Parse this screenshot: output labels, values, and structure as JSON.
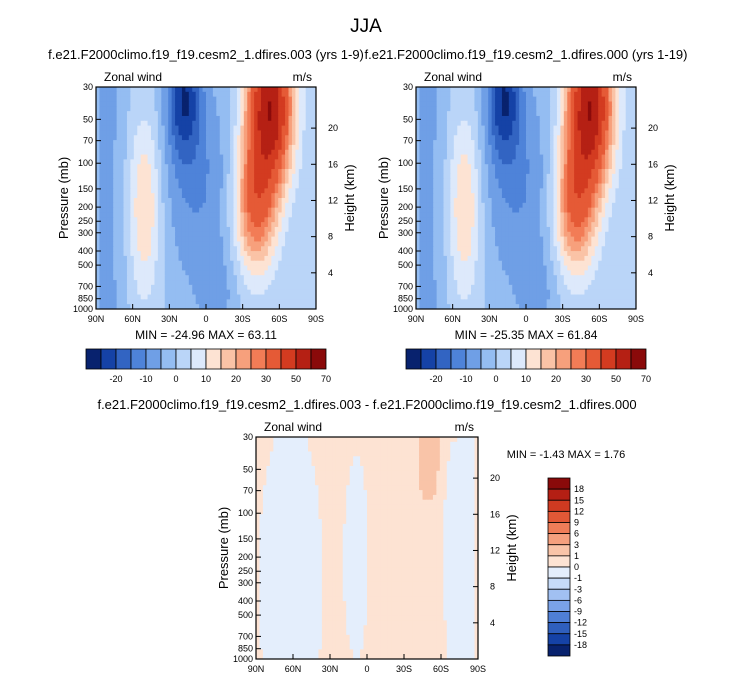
{
  "page_title": "JJA",
  "colors": {
    "main_scale": [
      "#08226e",
      "#1542a6",
      "#3264c2",
      "#4e83d9",
      "#6f9fe6",
      "#94bdf2",
      "#bad5f8",
      "#dde9fb",
      "#fde3d3",
      "#fac3a6",
      "#f7a07c",
      "#f27c56",
      "#e55a36",
      "#d33b20",
      "#b52014",
      "#8a0a0a"
    ],
    "diff_scale": [
      "#08226e",
      "#1542a6",
      "#2f5fbd",
      "#4f7fd6",
      "#7aa2e8",
      "#a1c0f2",
      "#c6dbf9",
      "#e4eefc",
      "#fde3d3",
      "#f9c4a8",
      "#f5a07e",
      "#ef7d58",
      "#e25836",
      "#cf3a21",
      "#b41f14",
      "#8a0a0a"
    ]
  },
  "panels": [
    {
      "title": "f.e21.F2000climo.f19_f19.cesm2_1.dfires.003 (yrs 1-9)",
      "left_label": "Zonal wind",
      "right_label": "m/s",
      "stats": "MIN = -24.96  MAX = 63.11",
      "ylabel": "Pressure (mb)",
      "ylabel_right": "Height (km)"
    },
    {
      "title": "f.e21.F2000climo.f19_f19.cesm2_1.dfires.000 (yrs 1-19)",
      "left_label": "Zonal wind",
      "right_label": "m/s",
      "stats": "MIN = -25.35  MAX = 61.84",
      "ylabel": "Pressure (mb)",
      "ylabel_right": "Height (km)"
    },
    {
      "title": "f.e21.F2000climo.f19_f19.cesm2_1.dfires.003 - f.e21.F2000climo.f19_f19.cesm2_1.dfires.000",
      "left_label": "Zonal wind",
      "right_label": "m/s",
      "stats": "MIN =  -1.43  MAX =   1.76",
      "ylabel": "Pressure (mb)",
      "ylabel_right": "Height (km)"
    }
  ],
  "chart_data": [
    {
      "type": "heatmap",
      "title": "f.e21.F2000climo.f19_f19.cesm2_1.dfires.003 (yrs 1-9)",
      "variable": "Zonal wind",
      "units": "m/s",
      "xlabel": "",
      "ylabel": "Pressure (mb)",
      "ylabel_right": "Height (km)",
      "x_ticks": [
        "90N",
        "60N",
        "30N",
        "0",
        "30S",
        "60S",
        "90S"
      ],
      "y_ticks": [
        "30",
        "50",
        "70",
        "100",
        "150",
        "200",
        "250",
        "300",
        "400",
        "500",
        "700",
        "850",
        "1000"
      ],
      "y_ticks_right": [
        "4",
        "8",
        "12",
        "16",
        "20"
      ],
      "ylim": [
        1000,
        30
      ],
      "y_scale": "log",
      "min": -24.96,
      "max": 63.11,
      "colorbar_labels": [
        "-20",
        "-10",
        "0",
        "10",
        "20",
        "30",
        "50",
        "70"
      ],
      "features": [
        {
          "kind": "max",
          "lat": 45,
          "p": 50,
          "value": 60
        },
        {
          "kind": "max",
          "lat": 45,
          "p": 200,
          "value": 40
        },
        {
          "kind": "min",
          "lat": -20,
          "p": 40,
          "value": -20
        },
        {
          "kind": "max",
          "lat": 52,
          "p": 200,
          "value": 18
        }
      ]
    },
    {
      "type": "heatmap",
      "title": "f.e21.F2000climo.f19_f19.cesm2_1.dfires.000 (yrs 1-19)",
      "variable": "Zonal wind",
      "units": "m/s",
      "xlabel": "",
      "ylabel": "Pressure (mb)",
      "ylabel_right": "Height (km)",
      "x_ticks": [
        "90N",
        "60N",
        "30N",
        "0",
        "30S",
        "60S",
        "90S"
      ],
      "y_ticks": [
        "30",
        "50",
        "70",
        "100",
        "150",
        "200",
        "250",
        "300",
        "400",
        "500",
        "700",
        "850",
        "1000"
      ],
      "y_ticks_right": [
        "4",
        "8",
        "12",
        "16",
        "20"
      ],
      "ylim": [
        1000,
        30
      ],
      "y_scale": "log",
      "min": -25.35,
      "max": 61.84,
      "colorbar_labels": [
        "-20",
        "-10",
        "0",
        "10",
        "20",
        "30",
        "50",
        "70"
      ]
    },
    {
      "type": "heatmap",
      "title": "f.e21.F2000climo.f19_f19.cesm2_1.dfires.003 - f.e21.F2000climo.f19_f19.cesm2_1.dfires.000",
      "variable": "Zonal wind",
      "units": "m/s",
      "xlabel": "",
      "ylabel": "Pressure (mb)",
      "ylabel_right": "Height (km)",
      "x_ticks": [
        "90N",
        "60N",
        "30N",
        "0",
        "30S",
        "60S",
        "90S"
      ],
      "y_ticks": [
        "30",
        "50",
        "70",
        "100",
        "150",
        "200",
        "250",
        "300",
        "400",
        "500",
        "700",
        "850",
        "1000"
      ],
      "y_ticks_right": [
        "4",
        "8",
        "12",
        "16",
        "20"
      ],
      "ylim": [
        1000,
        30
      ],
      "y_scale": "log",
      "min": -1.43,
      "max": 1.76,
      "colorbar_labels": [
        "18",
        "15",
        "12",
        "9",
        "6",
        "3",
        "1",
        "0",
        "-1",
        "-3",
        "-6",
        "-9",
        "-12",
        "-15",
        "-18"
      ]
    }
  ]
}
